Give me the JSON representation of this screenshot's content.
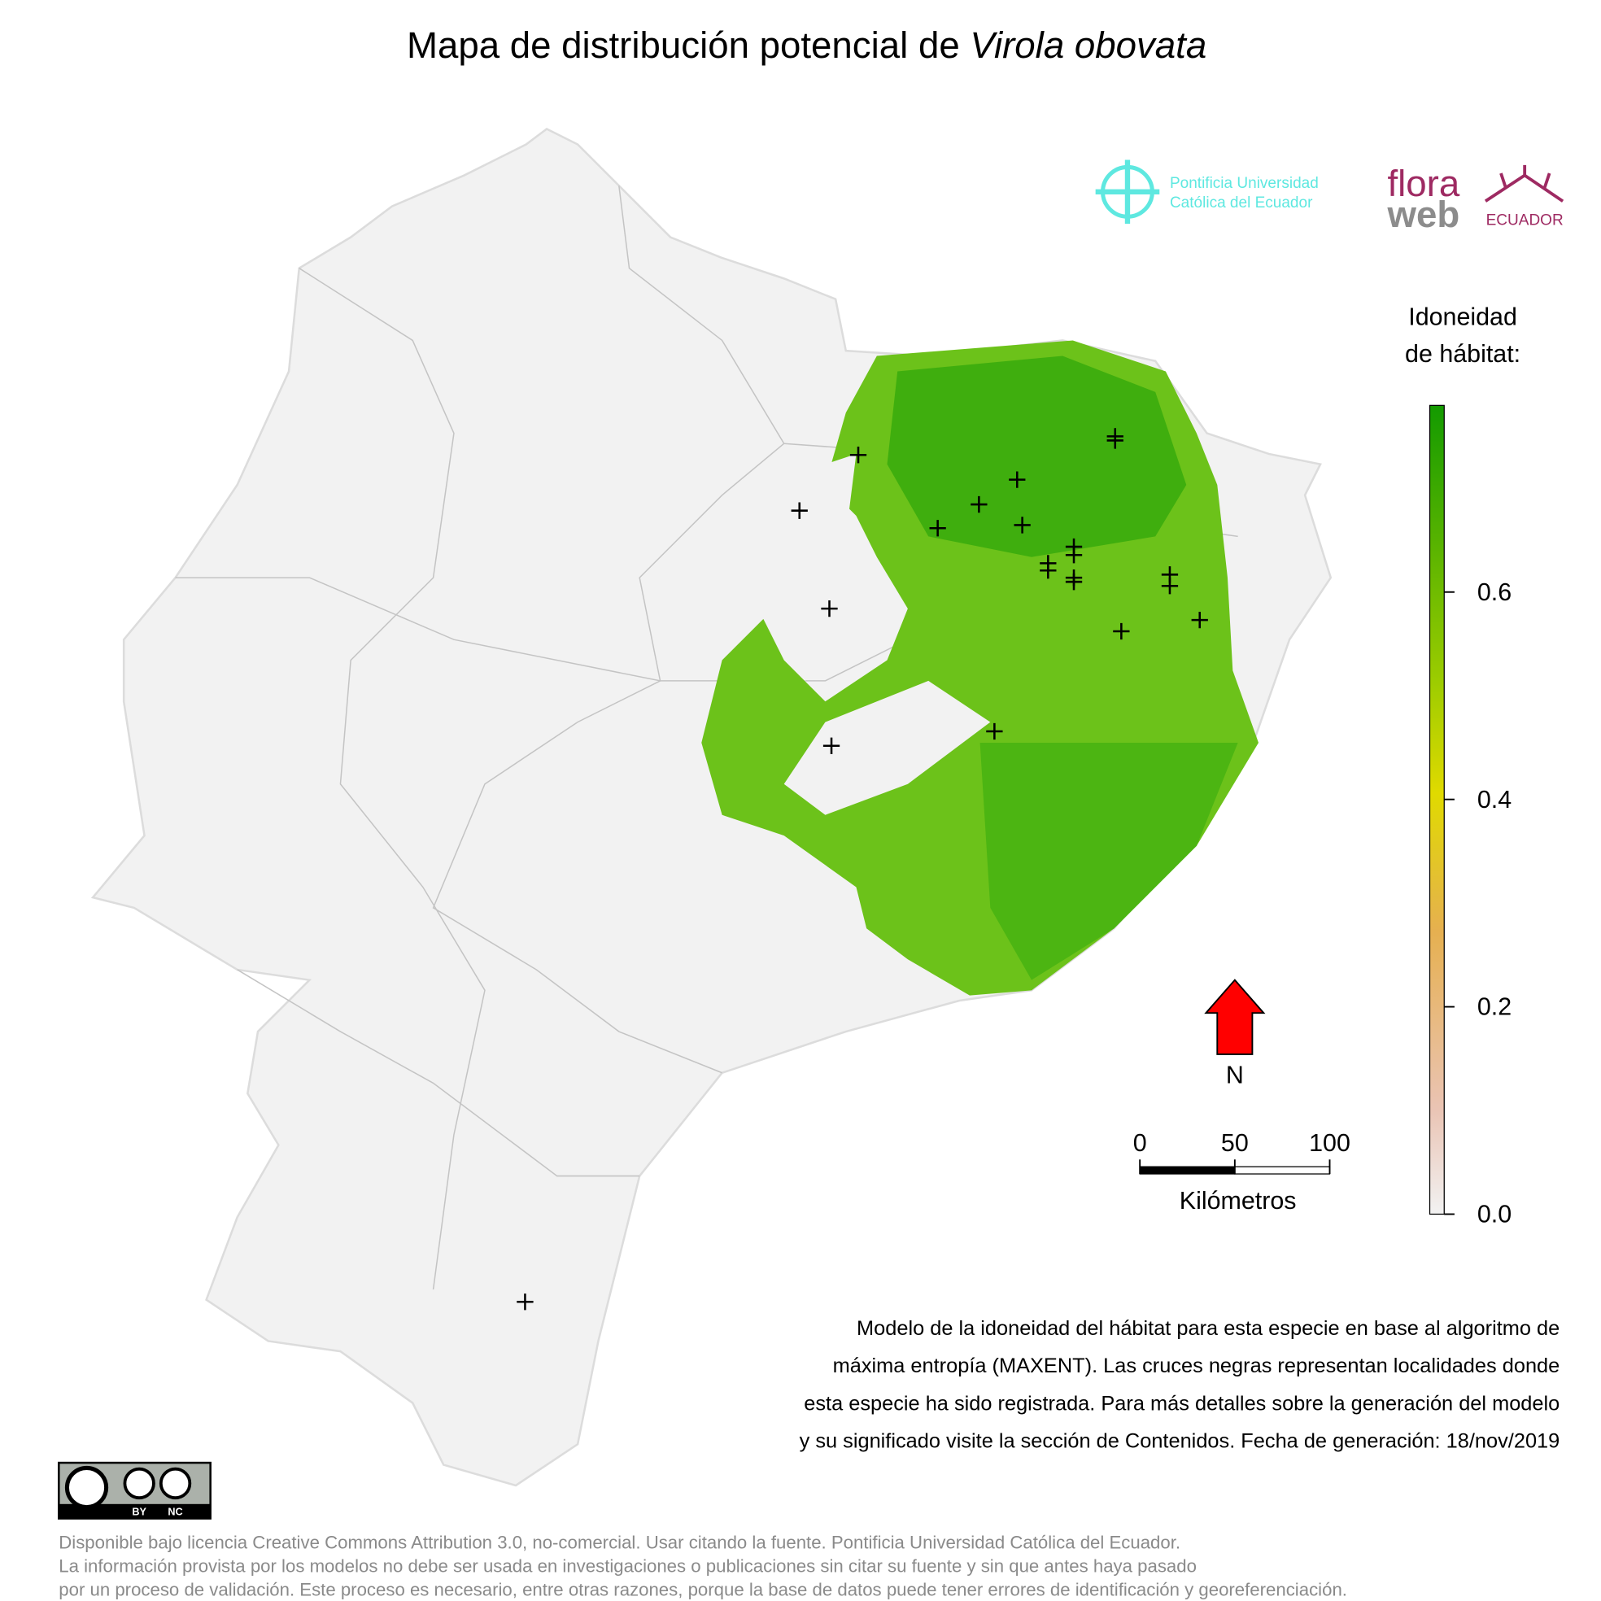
{
  "title": {
    "plain": "Mapa de distribución potencial de ",
    "species": "Virola obovata"
  },
  "logos": {
    "university": [
      "Pontificia Universidad",
      "Católica del Ecuador"
    ],
    "flora": "flora",
    "web": "web",
    "country": "ECUADOR"
  },
  "legend": {
    "title": [
      "Idoneidad",
      "de hábitat:"
    ],
    "lim": [
      0,
      0.78
    ],
    "ticks": [
      {
        "value": 0,
        "label": "0.0"
      },
      0.2,
      0.4,
      0.6
    ]
  },
  "north": "N",
  "scale_bar": {
    "lim": [
      0,
      100
    ],
    "ticks": [
      0,
      50,
      100
    ],
    "unit": "Kilómetros"
  },
  "description": [
    "Modelo de la idoneidad del hábitat para esta especie en base al algoritmo de",
    "máxima entropía (MAXENT). Las cruces negras representan localidades donde",
    "esta especie ha sido registrada. Para más detalles sobre la generación del modelo",
    "y su significado visite la sección de Contenidos. Fecha de generación: 18/nov/2019"
  ],
  "license_badge": [
    "BY",
    "NC"
  ],
  "license": [
    "Disponible bajo licencia Creative Commons Attribution 3.0, no-comercial. Usar citando la fuente. Pontificia Universidad Católica del Ecuador.",
    "La información provista por los modelos no debe ser usada en investigaciones o publicaciones sin citar su fuente y sin que antes haya pasado",
    "por un proceso de validación. Este proceso es necesario, entre otras razones, porque la base de datos puede tener errores de identificación y georeferenciación."
  ]
}
